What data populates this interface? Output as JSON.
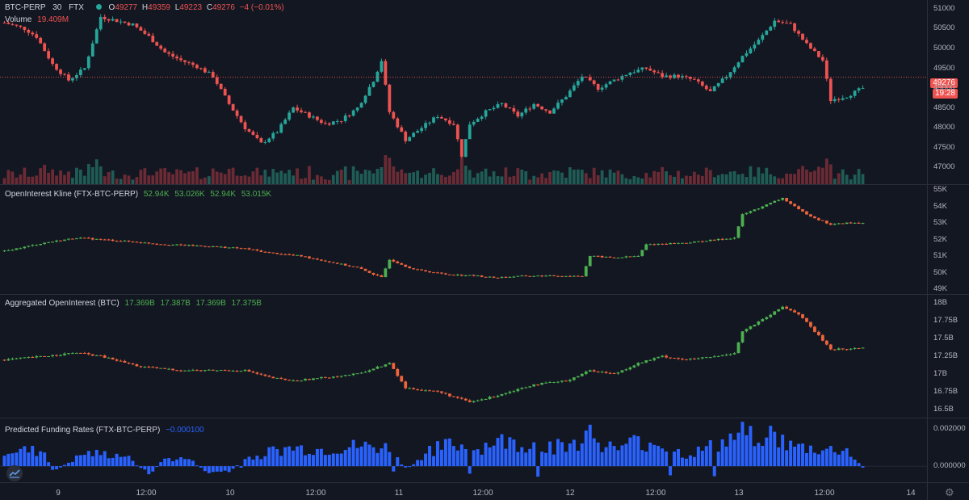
{
  "header": {
    "symbol": "BTC-PERP",
    "interval": "30",
    "exchange": "FTX",
    "ohlc": {
      "o_label": "O",
      "o": "49277",
      "h_label": "H",
      "h": "49359",
      "l_label": "L",
      "l": "49223",
      "c_label": "C",
      "c": "49276",
      "change": "−4 (−0.01%)"
    }
  },
  "volume": {
    "label": "Volume",
    "value": "19.409M"
  },
  "price_tags": {
    "last": "49276",
    "countdown": "19:28"
  },
  "panes": {
    "oi_kline": {
      "label": "OpenInterest Kline (FTX-BTC-PERP)",
      "values": [
        "52.94K",
        "53.026K",
        "52.94K",
        "53.015K"
      ]
    },
    "agg_oi": {
      "label": "Aggregated OpenInterest (BTC)",
      "values": [
        "17.369B",
        "17.387B",
        "17.369B",
        "17.375B"
      ]
    },
    "funding": {
      "label": "Predicted Funding Rates (FTX-BTC-PERP)",
      "value": "−0.000100"
    }
  },
  "colors": {
    "up": "#26a69a",
    "down": "#ef5350",
    "up_oi": "#4caf50",
    "down_oi": "#f0643c",
    "funding": "#2962ff",
    "bg": "#131722"
  },
  "icons": {
    "logo": "tradingview-cloud-icon",
    "settings": "gear-icon"
  },
  "chart_data": [
    {
      "type": "candlestick",
      "title": "BTC-PERP 30 FTX",
      "ylim": [
        46700,
        51100
      ],
      "y_ticks": [
        "51000",
        "50500",
        "50000",
        "49500",
        "49000",
        "48500",
        "48000",
        "47500",
        "47000"
      ],
      "x_ticks": [
        "9",
        "12:00",
        "10",
        "12:00",
        "11",
        "12:00",
        "12",
        "12:00",
        "13",
        "12:00",
        "14"
      ],
      "close_path": [
        [
          0,
          50650
        ],
        [
          5,
          50500
        ],
        [
          8,
          50300
        ],
        [
          12,
          49600
        ],
        [
          16,
          49200
        ],
        [
          20,
          49500
        ],
        [
          24,
          50800
        ],
        [
          28,
          50700
        ],
        [
          32,
          50600
        ],
        [
          36,
          50300
        ],
        [
          40,
          49900
        ],
        [
          44,
          49700
        ],
        [
          48,
          49550
        ],
        [
          52,
          49300
        ],
        [
          56,
          48600
        ],
        [
          60,
          48000
        ],
        [
          64,
          47600
        ],
        [
          68,
          47900
        ],
        [
          72,
          48500
        ],
        [
          76,
          48300
        ],
        [
          80,
          48100
        ],
        [
          84,
          48200
        ],
        [
          88,
          48500
        ],
        [
          92,
          49200
        ],
        [
          94,
          49700
        ],
        [
          96,
          48400
        ],
        [
          100,
          47700
        ],
        [
          104,
          48000
        ],
        [
          108,
          48300
        ],
        [
          112,
          48100
        ],
        [
          114,
          47300
        ],
        [
          116,
          48100
        ],
        [
          120,
          48400
        ],
        [
          124,
          48600
        ],
        [
          128,
          48300
        ],
        [
          132,
          48600
        ],
        [
          136,
          48400
        ],
        [
          140,
          48800
        ],
        [
          144,
          49300
        ],
        [
          148,
          49000
        ],
        [
          152,
          49200
        ],
        [
          156,
          49400
        ],
        [
          160,
          49500
        ],
        [
          164,
          49300
        ],
        [
          168,
          49300
        ],
        [
          172,
          49200
        ],
        [
          176,
          48900
        ],
        [
          180,
          49300
        ],
        [
          184,
          49800
        ],
        [
          188,
          50200
        ],
        [
          192,
          50700
        ],
        [
          196,
          50600
        ],
        [
          200,
          50100
        ],
        [
          204,
          49700
        ],
        [
          206,
          48700
        ],
        [
          210,
          48800
        ],
        [
          214,
          49000
        ],
        [
          218,
          49300
        ]
      ],
      "volume_series": "per-candle bars at bottom of price pane"
    },
    {
      "type": "candlestick",
      "title": "OpenInterest Kline (FTX-BTC-PERP)",
      "ylim": [
        49000,
        55000
      ],
      "y_ticks": [
        "55K",
        "54K",
        "53K",
        "52K",
        "51K",
        "50K",
        "49K"
      ],
      "close_path": [
        [
          0,
          51300
        ],
        [
          10,
          51800
        ],
        [
          18,
          52100
        ],
        [
          30,
          51900
        ],
        [
          40,
          51700
        ],
        [
          50,
          51600
        ],
        [
          60,
          51450
        ],
        [
          66,
          51200
        ],
        [
          74,
          51000
        ],
        [
          80,
          50700
        ],
        [
          88,
          50300
        ],
        [
          94,
          49700
        ],
        [
          96,
          50800
        ],
        [
          102,
          50200
        ],
        [
          110,
          49900
        ],
        [
          118,
          49800
        ],
        [
          122,
          49700
        ],
        [
          130,
          49800
        ],
        [
          140,
          49800
        ],
        [
          144,
          49800
        ],
        [
          146,
          51000
        ],
        [
          152,
          50900
        ],
        [
          158,
          51000
        ],
        [
          160,
          51700
        ],
        [
          170,
          51800
        ],
        [
          178,
          52000
        ],
        [
          182,
          52100
        ],
        [
          184,
          53500
        ],
        [
          190,
          54100
        ],
        [
          194,
          54500
        ],
        [
          198,
          53800
        ],
        [
          202,
          53300
        ],
        [
          206,
          52900
        ],
        [
          210,
          53000
        ],
        [
          214,
          53000
        ]
      ]
    },
    {
      "type": "candlestick",
      "title": "Aggregated OpenInterest (BTC)",
      "ylim": [
        16.45,
        18.05
      ],
      "y_ticks": [
        "18B",
        "17.75B",
        "17.5B",
        "17.25B",
        "17B",
        "16.75B",
        "16.5B"
      ],
      "close_path": [
        [
          0,
          17.2
        ],
        [
          10,
          17.25
        ],
        [
          18,
          17.3
        ],
        [
          24,
          17.25
        ],
        [
          34,
          17.1
        ],
        [
          44,
          17.05
        ],
        [
          50,
          17.05
        ],
        [
          60,
          17.05
        ],
        [
          66,
          16.95
        ],
        [
          72,
          16.9
        ],
        [
          80,
          16.95
        ],
        [
          88,
          17.0
        ],
        [
          96,
          17.15
        ],
        [
          100,
          16.8
        ],
        [
          108,
          16.75
        ],
        [
          116,
          16.6
        ],
        [
          120,
          16.65
        ],
        [
          126,
          16.75
        ],
        [
          132,
          16.85
        ],
        [
          140,
          16.9
        ],
        [
          146,
          17.05
        ],
        [
          152,
          17.0
        ],
        [
          158,
          17.15
        ],
        [
          164,
          17.25
        ],
        [
          170,
          17.2
        ],
        [
          178,
          17.25
        ],
        [
          182,
          17.3
        ],
        [
          184,
          17.6
        ],
        [
          190,
          17.8
        ],
        [
          194,
          17.95
        ],
        [
          198,
          17.85
        ],
        [
          202,
          17.6
        ],
        [
          206,
          17.35
        ],
        [
          210,
          17.35
        ],
        [
          214,
          17.37
        ]
      ]
    },
    {
      "type": "bar",
      "title": "Predicted Funding Rates (FTX-BTC-PERP)",
      "ylim": [
        -0.0006,
        0.0023
      ],
      "y_ticks": [
        "0.002000",
        "0.000000"
      ],
      "profile": [
        [
          0,
          0.0009
        ],
        [
          10,
          0.0008
        ],
        [
          12,
          -0.0003
        ],
        [
          20,
          0.0007
        ],
        [
          30,
          0.0006
        ],
        [
          36,
          -0.0005
        ],
        [
          40,
          0.0004
        ],
        [
          46,
          0.0004
        ],
        [
          50,
          -0.0003
        ],
        [
          56,
          -0.0003
        ],
        [
          60,
          0.0004
        ],
        [
          66,
          0.0008
        ],
        [
          72,
          0.001
        ],
        [
          80,
          0.0009
        ],
        [
          88,
          0.0011
        ],
        [
          96,
          0.001
        ],
        [
          100,
          -0.0002
        ],
        [
          106,
          0.0009
        ],
        [
          112,
          0.0012
        ],
        [
          118,
          0.0009
        ],
        [
          122,
          0.0014
        ],
        [
          130,
          0.0012
        ],
        [
          140,
          0.0011
        ],
        [
          146,
          0.0018
        ],
        [
          152,
          0.0009
        ],
        [
          158,
          0.0014
        ],
        [
          164,
          0.0012
        ],
        [
          170,
          0.0006
        ],
        [
          178,
          0.0012
        ],
        [
          184,
          0.0018
        ],
        [
          190,
          0.0019
        ],
        [
          196,
          0.0011
        ],
        [
          204,
          0.0009
        ],
        [
          210,
          0.0009
        ],
        [
          214,
          -0.0001
        ]
      ]
    }
  ]
}
